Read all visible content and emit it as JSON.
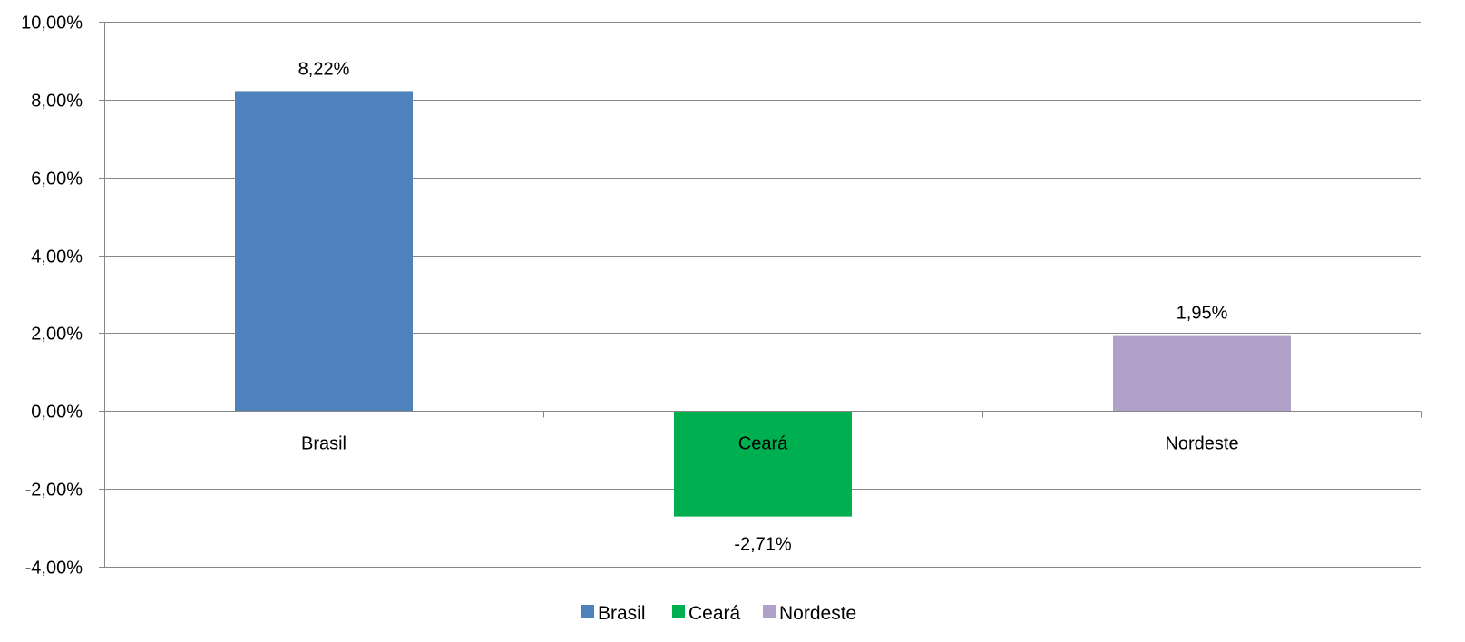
{
  "chart_data": {
    "type": "bar",
    "title": "",
    "xlabel": "",
    "ylabel": "",
    "categories": [
      "Brasil",
      "Ceará",
      "Nordeste"
    ],
    "values": [
      8.22,
      -2.71,
      1.95
    ],
    "data_labels": [
      "8,22%",
      "-2,71%",
      "1,95%"
    ],
    "colors": [
      "#4f81bd",
      "#00b050",
      "#b1a0c7"
    ],
    "ylim": [
      -4,
      10
    ],
    "y_ticks": [
      10,
      8,
      6,
      4,
      2,
      0,
      -2,
      -4
    ],
    "y_tick_labels": [
      "10,00%",
      "8,00%",
      "6,00%",
      "4,00%",
      "2,00%",
      "0,00%",
      "-2,00%",
      "-4,00%"
    ],
    "grid": true,
    "gridline_color": "#868686",
    "legend": {
      "position": "bottom",
      "entries": [
        "Brasil",
        "Ceará",
        "Nordeste"
      ]
    }
  }
}
